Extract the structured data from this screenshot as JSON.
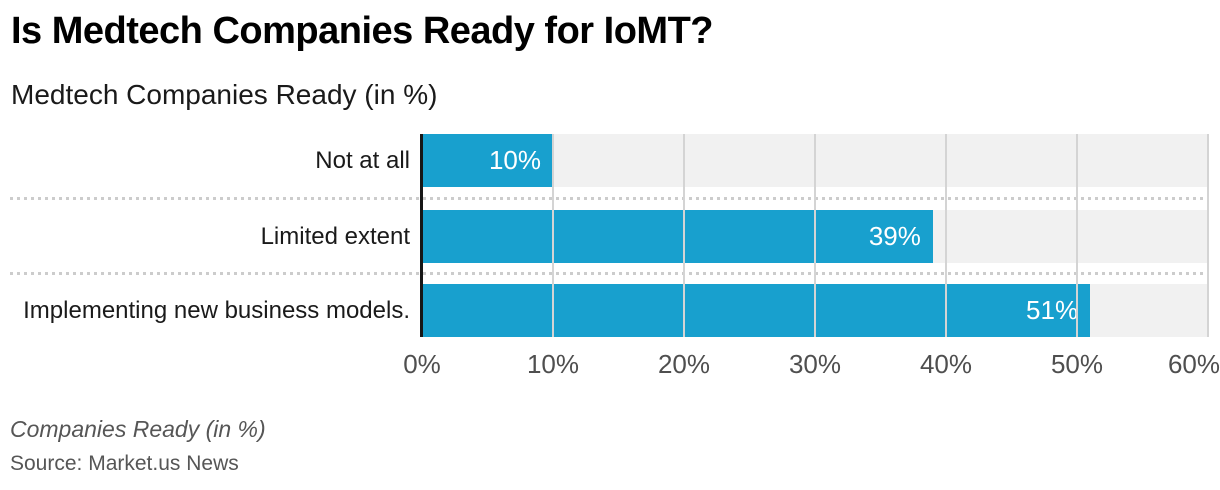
{
  "header": {
    "title": "Is Medtech Companies Ready for IoMT?",
    "subtitle": "Medtech Companies Ready (in %)"
  },
  "chart_data": {
    "type": "bar",
    "orientation": "horizontal",
    "title": "Is Medtech Companies Ready for IoMT?",
    "subtitle": "Medtech Companies Ready (in %)",
    "categories": [
      "Not at all",
      "Limited extent",
      "Implementing new business models."
    ],
    "values": [
      10,
      39,
      51
    ],
    "value_labels": [
      "10%",
      "39%",
      "51%"
    ],
    "x_axis": {
      "min": 0,
      "max": 60,
      "tick_labels": [
        "0%",
        "10%",
        "20%",
        "30%",
        "40%",
        "50%",
        "60%"
      ]
    },
    "xlabel": "",
    "ylabel": "",
    "grid": "vertical",
    "legend": "none",
    "bar_color": "#18a0ce",
    "track_color": "#f1f1f1",
    "axis_line_color": "#161616"
  },
  "footer": {
    "note": "Companies Ready (in %)",
    "source": "Source: Market.us News"
  }
}
